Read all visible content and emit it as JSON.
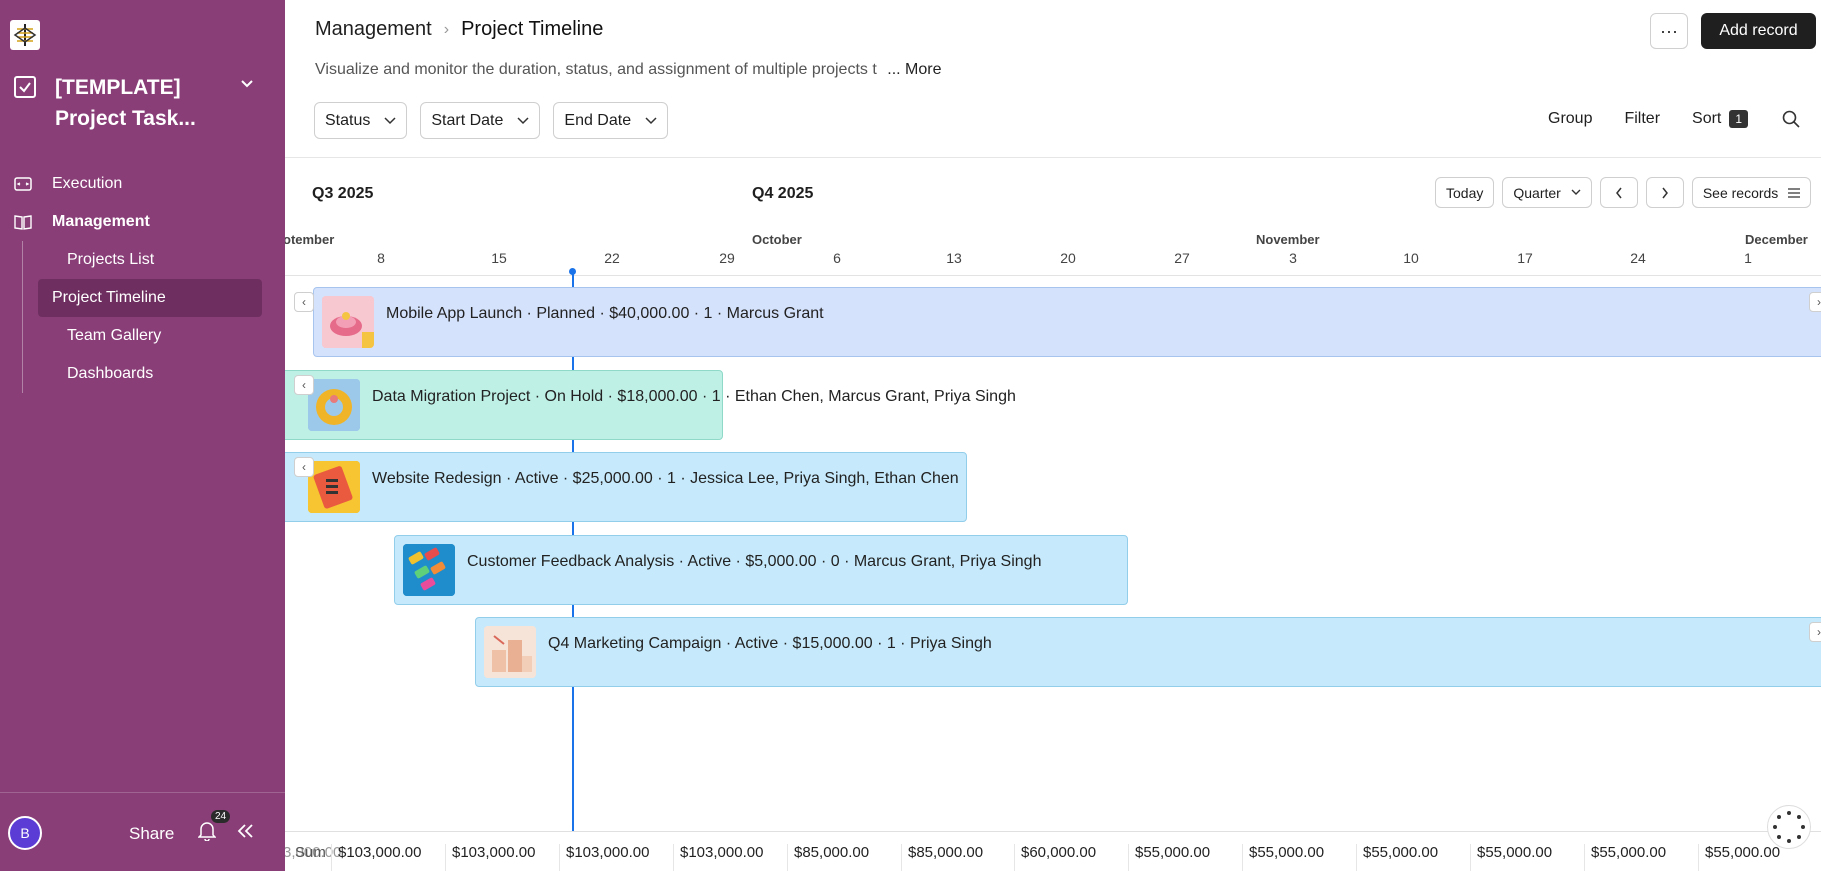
{
  "sidebar": {
    "base_name": "[TEMPLATE] Project Task...",
    "nav": [
      {
        "label": "Execution",
        "icon": "form-icon"
      },
      {
        "label": "Management",
        "icon": "book-icon"
      }
    ],
    "sub_items": [
      {
        "label": "Projects List"
      },
      {
        "label": "Project Timeline"
      },
      {
        "label": "Team Gallery"
      },
      {
        "label": "Dashboards"
      }
    ],
    "avatar_letter": "B",
    "share_label": "Share",
    "notifications_count": "24"
  },
  "header": {
    "breadcrumb_parent": "Management",
    "breadcrumb_current": "Project Timeline",
    "description": "Visualize and monitor the duration, status, and assignment of multiple projects t",
    "more_label": "... More",
    "more_button": "···",
    "add_record": "Add record"
  },
  "filters": {
    "status": "Status",
    "start_date": "Start Date",
    "end_date": "End Date"
  },
  "tools": {
    "group": "Group",
    "filter": "Filter",
    "sort": "Sort",
    "sort_count": "1"
  },
  "timeline": {
    "quarters": [
      "Q3 2025",
      "Q4 2025"
    ],
    "today_label": "Today",
    "scale_label": "Quarter",
    "see_records": "See records",
    "months": [
      "otember",
      "October",
      "November",
      "December"
    ],
    "days": [
      "8",
      "15",
      "22",
      "29",
      "6",
      "13",
      "20",
      "27",
      "3",
      "10",
      "17",
      "24",
      "1"
    ],
    "bars": [
      {
        "text": "Mobile App Launch · Planned · $40,000.00 · 1 · Marcus Grant"
      },
      {
        "text": "Data Migration Project · On Hold · $18,000.00 · 1 · Ethan Chen, Marcus Grant, Priya Singh"
      },
      {
        "text": "Website Redesign · Active · $25,000.00 · 1 · Jessica Lee, Priya Singh, Ethan Chen"
      },
      {
        "text": "Customer Feedback Analysis · Active · $5,000.00 · 0 · Marcus Grant, Priya Singh"
      },
      {
        "text": "Q4 Marketing Campaign · Active · $15,000.00 · 1 · Priya Singh"
      }
    ],
    "sum_label": "Sum",
    "sum_partial": "3,000.00",
    "sums": [
      "$103,000.00",
      "$103,000.00",
      "$103,000.00",
      "$103,000.00",
      "$85,000.00",
      "$85,000.00",
      "$60,000.00",
      "$55,000.00",
      "$55,000.00",
      "$55,000.00",
      "$55,000.00",
      "$55,000.00",
      "$55,000.00"
    ]
  },
  "colors": {
    "sidebar_bg": "#893e77",
    "bar_planned": "#d5e2fb",
    "bar_on_hold": "#bff0e6",
    "bar_active": "#c6eafb",
    "today_line": "#1a73e8"
  }
}
